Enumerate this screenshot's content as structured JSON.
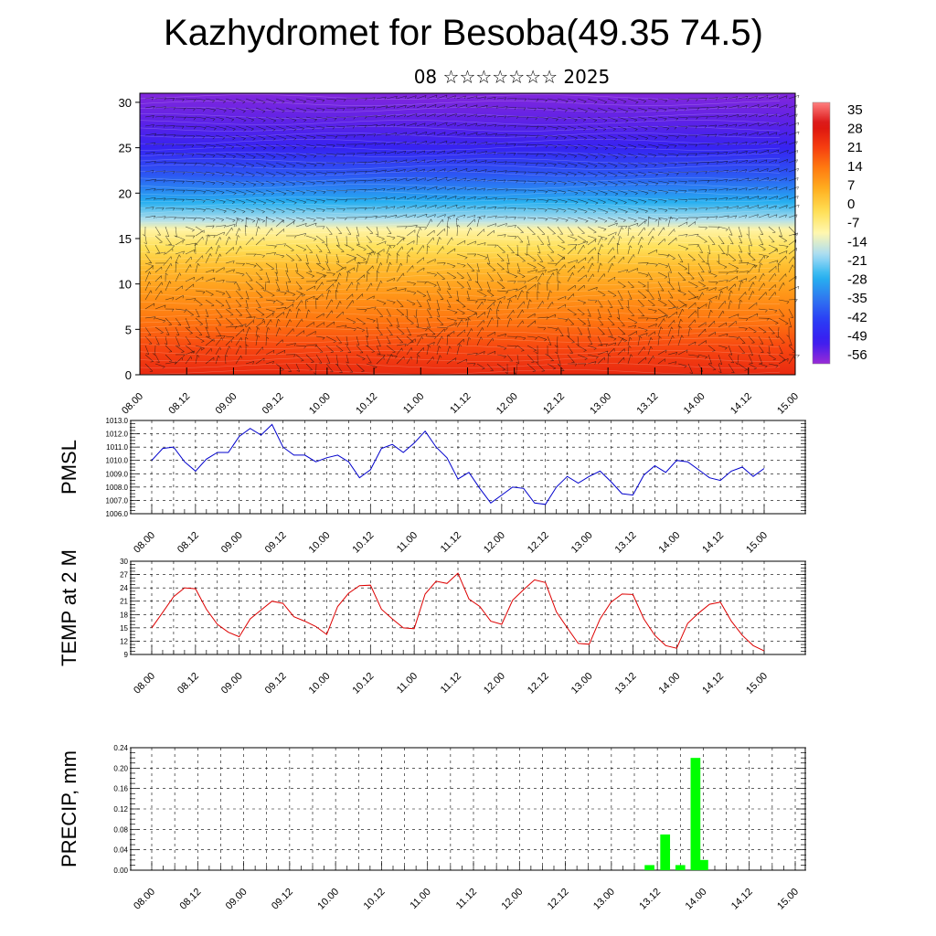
{
  "header": {
    "title": "Kazhydromet for Besoba(49.35 74.5)",
    "subtitle": "08 ☆☆☆☆☆☆☆ 2025"
  },
  "chart_data": [
    {
      "type": "heatmap",
      "name": "vertical-cross-section",
      "x_tick_labels": [
        "08.00",
        "08.12",
        "09.00",
        "09.12",
        "10.00",
        "10.12",
        "11.00",
        "11.12",
        "12.00",
        "12.12",
        "13.00",
        "13.12",
        "14.00",
        "14.12",
        "15.00"
      ],
      "y_ticks": [
        "0",
        "5",
        "10",
        "15",
        "20",
        "25",
        "30"
      ],
      "ylim": [
        0,
        31
      ],
      "colorbar_labels": [
        "35",
        "28",
        "21",
        "14",
        "7",
        "0",
        "-7",
        "-14",
        "-21",
        "-28",
        "-35",
        "-42",
        "-49",
        "-56"
      ],
      "colorbar_range": [
        -60,
        38
      ],
      "color_stops": [
        "#9a2bd6",
        "#3a1cf0",
        "#2a3cf5",
        "#2f78f0",
        "#26b4f0",
        "#a8dcf5",
        "#fff7b0",
        "#ffe055",
        "#ffb020",
        "#ff7a10",
        "#f53a10",
        "#d81010",
        "#ff8080"
      ],
      "description_levels": "temperature shaded by height, arrows show wind",
      "shading_profile_height": [
        0,
        3,
        6,
        9,
        12,
        14,
        16,
        17,
        19,
        22,
        25,
        28,
        31
      ],
      "shading_profile_value": [
        25,
        20,
        14,
        9,
        3,
        -3,
        -10,
        -18,
        -28,
        -40,
        -50,
        -55,
        -58
      ]
    },
    {
      "type": "line",
      "name": "pmsl",
      "ylabel": "PMSL",
      "ylim": [
        1006,
        1013
      ],
      "y_ticks": [
        "1006.0",
        "1007.0",
        "1008.0",
        "1009.0",
        "1010.0",
        "1011.0",
        "1012.0",
        "1013.0"
      ],
      "x_tick_labels": [
        "08.00",
        "08.12",
        "09.00",
        "09.12",
        "10.00",
        "10.12",
        "11.00",
        "11.12",
        "12.00",
        "12.12",
        "13.00",
        "13.12",
        "14.00",
        "14.12",
        "15.00"
      ],
      "color": "#0000cc",
      "series": [
        {
          "values": [
            1010.0,
            1010.9,
            1011.0,
            1009.9,
            1009.2,
            1010.1,
            1010.6,
            1010.6,
            1011.8,
            1012.4,
            1011.9,
            1012.7,
            1011.0,
            1010.4,
            1010.4,
            1009.9,
            1010.2,
            1010.4,
            1009.9,
            1008.7,
            1009.3,
            1010.9,
            1011.2,
            1010.6,
            1011.3,
            1012.2,
            1011.0,
            1010.2,
            1008.6,
            1009.1,
            1007.9,
            1006.8,
            1007.4,
            1008.0,
            1007.9,
            1006.8,
            1006.7,
            1008.0,
            1008.8,
            1008.3,
            1008.8,
            1009.2,
            1008.4,
            1007.5,
            1007.4,
            1008.9,
            1009.6,
            1009.1,
            1010.0,
            1009.9,
            1009.3,
            1008.7,
            1008.5,
            1009.2,
            1009.5,
            1008.8,
            1009.4
          ]
        }
      ]
    },
    {
      "type": "line",
      "name": "temp-2m",
      "ylabel": "TEMP at 2 M",
      "ylim": [
        9,
        30
      ],
      "y_ticks": [
        "9",
        "12",
        "15",
        "18",
        "21",
        "24",
        "27",
        "30"
      ],
      "x_tick_labels": [
        "08.00",
        "08.12",
        "09.00",
        "09.12",
        "10.00",
        "10.12",
        "11.00",
        "11.12",
        "12.00",
        "12.12",
        "13.00",
        "13.12",
        "14.00",
        "14.12",
        "15.00"
      ],
      "color": "#dd0000",
      "series": [
        {
          "values": [
            15.0,
            18.5,
            22.0,
            24.0,
            23.8,
            19.2,
            15.8,
            14.0,
            13.0,
            17.0,
            19.0,
            21.0,
            20.5,
            17.5,
            16.5,
            15.3,
            13.5,
            19.8,
            22.8,
            24.5,
            24.6,
            19.2,
            17.0,
            15.0,
            14.8,
            22.6,
            25.5,
            25.0,
            27.3,
            21.5,
            19.8,
            16.5,
            15.8,
            21.2,
            23.6,
            25.8,
            25.2,
            18.6,
            15.0,
            11.5,
            11.3,
            17.0,
            20.8,
            22.6,
            22.5,
            17.0,
            13.3,
            11.0,
            10.4,
            16.0,
            18.3,
            20.3,
            20.8,
            16.5,
            13.3,
            11.0,
            9.8
          ]
        }
      ]
    },
    {
      "type": "bar",
      "name": "precip",
      "ylabel": "PRECIP, mm",
      "ylim": [
        0,
        0.24
      ],
      "y_ticks": [
        "0.00",
        "0.04",
        "0.08",
        "0.12",
        "0.16",
        "0.20",
        "0.24"
      ],
      "x_tick_labels": [
        "08.00",
        "08.12",
        "09.00",
        "09.12",
        "10.00",
        "10.12",
        "11.00",
        "11.12",
        "12.00",
        "12.12",
        "13.00",
        "13.12",
        "14.00",
        "14.12",
        "15.00"
      ],
      "color": "#00ff00",
      "bars": [
        {
          "x": 10.83,
          "value": 0.01
        },
        {
          "x": 11.17,
          "value": 0.07
        },
        {
          "x": 11.5,
          "value": 0.01
        },
        {
          "x": 11.83,
          "value": 0.22
        },
        {
          "x": 12.0,
          "value": 0.02
        }
      ]
    }
  ]
}
